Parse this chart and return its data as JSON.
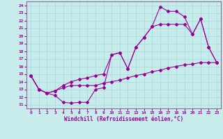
{
  "xlabel": "Windchill (Refroidissement éolien,°C)",
  "xlim": [
    -0.5,
    23.5
  ],
  "ylim": [
    10.5,
    24.5
  ],
  "xticks": [
    0,
    1,
    2,
    3,
    4,
    5,
    6,
    7,
    8,
    9,
    10,
    11,
    12,
    13,
    14,
    15,
    16,
    17,
    18,
    19,
    20,
    21,
    22,
    23
  ],
  "yticks": [
    11,
    12,
    13,
    14,
    15,
    16,
    17,
    18,
    19,
    20,
    21,
    22,
    23,
    24
  ],
  "bg_color": "#c8ecec",
  "grid_color": "#aadddd",
  "line_color": "#990099",
  "spine_color": "#996699",
  "line1_x": [
    0,
    1,
    2,
    3,
    4,
    5,
    6,
    7,
    8,
    9,
    10,
    11,
    12,
    13,
    14,
    15,
    16,
    17,
    18,
    19,
    20,
    21,
    22,
    23
  ],
  "line1_y": [
    14.8,
    13.0,
    12.5,
    12.2,
    11.3,
    11.2,
    11.3,
    11.3,
    13.0,
    13.2,
    17.5,
    17.8,
    15.7,
    18.5,
    19.8,
    21.2,
    23.8,
    23.2,
    23.2,
    22.5,
    20.2,
    22.2,
    18.5,
    16.5
  ],
  "line2_x": [
    0,
    1,
    2,
    3,
    4,
    5,
    6,
    7,
    8,
    9,
    10,
    11,
    12,
    13,
    14,
    15,
    16,
    17,
    18,
    19,
    20,
    21,
    22,
    23
  ],
  "line2_y": [
    14.8,
    13.0,
    12.5,
    12.8,
    13.5,
    14.0,
    14.3,
    14.5,
    14.8,
    15.0,
    17.5,
    17.8,
    15.7,
    18.5,
    19.8,
    21.2,
    21.5,
    21.5,
    21.5,
    21.5,
    20.2,
    22.2,
    18.5,
    16.5
  ],
  "line3_x": [
    0,
    1,
    2,
    3,
    4,
    5,
    6,
    7,
    8,
    9,
    10,
    11,
    12,
    13,
    14,
    15,
    16,
    17,
    18,
    19,
    20,
    21,
    22,
    23
  ],
  "line3_y": [
    14.8,
    13.0,
    12.5,
    12.8,
    13.2,
    13.5,
    13.5,
    13.5,
    13.5,
    13.8,
    14.0,
    14.2,
    14.5,
    14.8,
    15.0,
    15.3,
    15.5,
    15.8,
    16.0,
    16.2,
    16.3,
    16.5,
    16.5,
    16.5
  ]
}
